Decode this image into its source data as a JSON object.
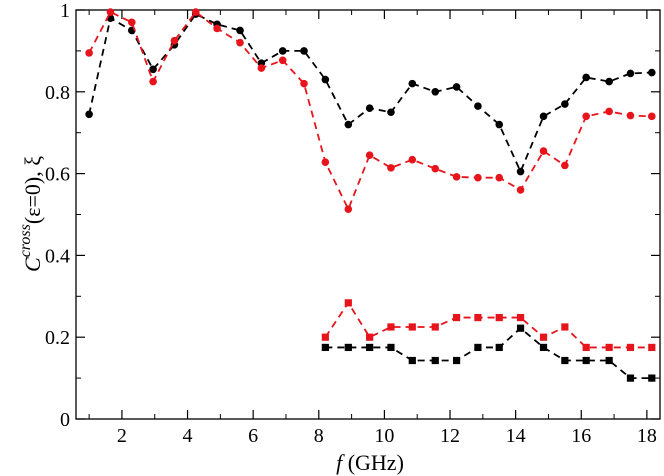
{
  "chart_data": {
    "type": "line",
    "xlim": [
      0.6,
      18.4
    ],
    "ylim": [
      0,
      1
    ],
    "x_ticks": [
      2,
      4,
      6,
      8,
      10,
      12,
      14,
      16,
      18
    ],
    "y_ticks": [
      0,
      0.2,
      0.4,
      0.6,
      0.8,
      1
    ],
    "x_tick_labels": [
      "2",
      "4",
      "6",
      "8",
      "10",
      "12",
      "14",
      "16",
      "18"
    ],
    "y_tick_labels": [
      "0",
      "0.2",
      "0.4",
      "0.6",
      "0.8",
      "1"
    ],
    "xlabel": {
      "italic": "f",
      "rest": " (GHz)"
    },
    "ylabel": {
      "base": "C",
      "sup": "cross",
      "rest": "(ε=0), ξ"
    },
    "grid": false,
    "series": [
      {
        "color": "#000000",
        "marker": "circle",
        "line": "dashed",
        "x": [
          1.0,
          1.65,
          2.3,
          2.95,
          3.6,
          4.25,
          4.9,
          5.6,
          6.25,
          6.9,
          7.55,
          8.2,
          8.9,
          9.55,
          10.2,
          10.85,
          11.55,
          12.2,
          12.85,
          13.5,
          14.15,
          14.85,
          15.5,
          16.15,
          16.85,
          17.5,
          18.15
        ],
        "y": [
          0.745,
          0.98,
          0.95,
          0.855,
          0.915,
          0.99,
          0.965,
          0.95,
          0.87,
          0.9,
          0.9,
          0.83,
          0.72,
          0.76,
          0.75,
          0.82,
          0.8,
          0.812,
          0.765,
          0.72,
          0.605,
          0.74,
          0.77,
          0.835,
          0.825,
          0.845,
          0.847
        ]
      },
      {
        "color": "#e8141b",
        "marker": "circle",
        "line": "dashed",
        "x": [
          1.0,
          1.65,
          2.3,
          2.95,
          3.6,
          4.25,
          4.9,
          5.6,
          6.25,
          6.9,
          7.55,
          8.2,
          8.9,
          9.55,
          10.2,
          10.85,
          11.55,
          12.2,
          12.85,
          13.5,
          14.15,
          14.85,
          15.5,
          16.15,
          16.85,
          17.5,
          18.15
        ],
        "y": [
          0.895,
          0.995,
          0.97,
          0.825,
          0.925,
          0.995,
          0.955,
          0.92,
          0.858,
          0.877,
          0.82,
          0.628,
          0.513,
          0.645,
          0.614,
          0.634,
          0.612,
          0.592,
          0.59,
          0.59,
          0.56,
          0.655,
          0.62,
          0.74,
          0.752,
          0.742,
          0.74
        ]
      },
      {
        "color": "#e8141b",
        "marker": "square",
        "line": "dashed",
        "x": [
          8.2,
          8.9,
          9.55,
          10.2,
          10.85,
          11.55,
          12.2,
          12.85,
          13.5,
          14.15,
          14.85,
          15.5,
          16.15,
          16.85,
          17.5,
          18.15
        ],
        "y": [
          0.2,
          0.284,
          0.2,
          0.225,
          0.225,
          0.225,
          0.248,
          0.248,
          0.248,
          0.248,
          0.2,
          0.225,
          0.175,
          0.175,
          0.175,
          0.175
        ]
      },
      {
        "color": "#000000",
        "marker": "square",
        "line": "dashed",
        "x": [
          8.2,
          8.9,
          9.55,
          10.2,
          10.85,
          11.55,
          12.2,
          12.85,
          13.5,
          14.15,
          14.85,
          15.5,
          16.15,
          16.85,
          17.5,
          18.15
        ],
        "y": [
          0.175,
          0.175,
          0.175,
          0.175,
          0.143,
          0.143,
          0.143,
          0.175,
          0.175,
          0.222,
          0.175,
          0.143,
          0.143,
          0.143,
          0.1,
          0.1
        ]
      }
    ]
  }
}
